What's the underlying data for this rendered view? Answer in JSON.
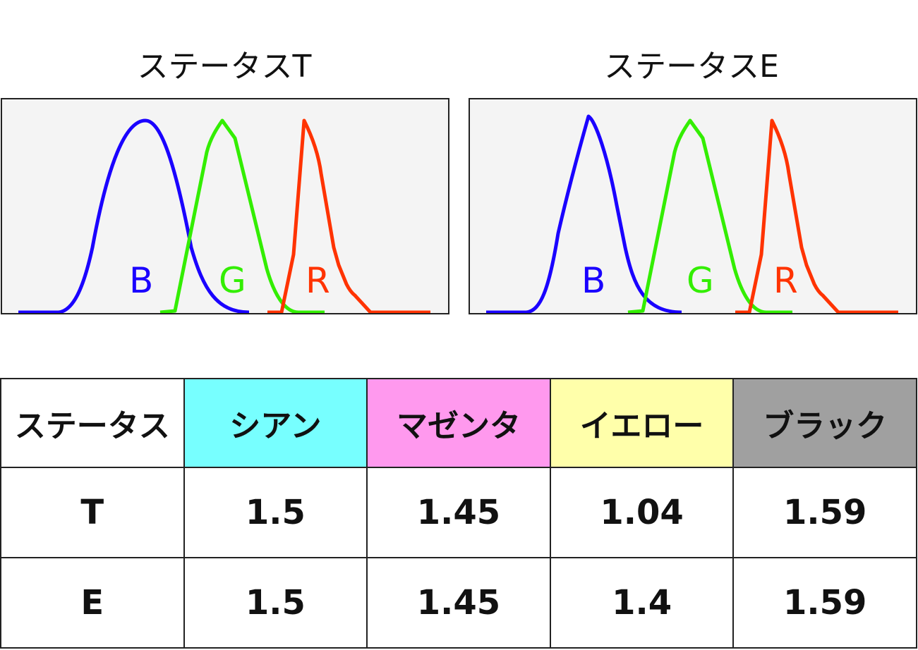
{
  "panels": [
    {
      "id": "T",
      "title": "ステータスT",
      "curves": [
        {
          "label": "B",
          "color": "#1a00ff"
        },
        {
          "label": "G",
          "color": "#33ee00"
        },
        {
          "label": "R",
          "color": "#ff3300"
        }
      ]
    },
    {
      "id": "E",
      "title": "ステータスE",
      "curves": [
        {
          "label": "B",
          "color": "#1a00ff"
        },
        {
          "label": "G",
          "color": "#33ee00"
        },
        {
          "label": "R",
          "color": "#ff3300"
        }
      ]
    }
  ],
  "table": {
    "headers": [
      {
        "label": "ステータス",
        "bg": "#ffffff"
      },
      {
        "label": "シアン",
        "bg": "#77ffff"
      },
      {
        "label": "マゼンタ",
        "bg": "#ff99ee"
      },
      {
        "label": "イエロー",
        "bg": "#ffffaa"
      },
      {
        "label": "ブラック",
        "bg": "#a0a0a0"
      }
    ],
    "rows": [
      [
        "T",
        "1.5",
        "1.45",
        "1.04",
        "1.59"
      ],
      [
        "E",
        "1.5",
        "1.45",
        "1.4",
        "1.59"
      ]
    ]
  }
}
